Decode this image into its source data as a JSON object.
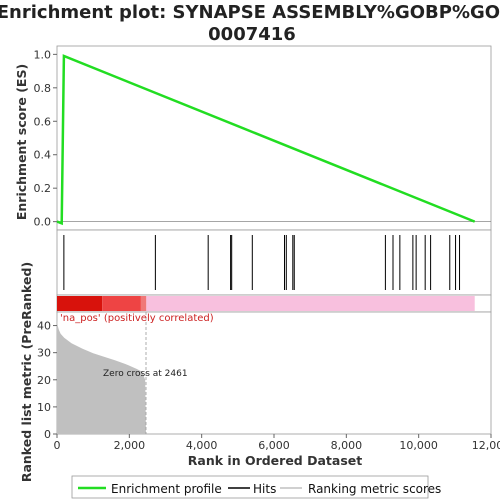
{
  "title_line1": "Enrichment plot: SYNAPSE ASSEMBLY%GOBP%GO:",
  "title_line2": "0007416",
  "colors": {
    "enrichment": "#22dd22",
    "hits": "#000000",
    "ranking_fill": "#c0c0c0",
    "heat_red_dark": "#d8120c",
    "heat_red": "#ee4444",
    "heat_pink": "#f8c0de",
    "annotation_red": "#cc2222"
  },
  "chart_data": [
    {
      "type": "line",
      "name": "enrichment-profile",
      "ylabel": "Enrichment score (ES)",
      "xlim": [
        0,
        12000
      ],
      "ylim": [
        -0.05,
        1.05
      ],
      "yticks": [
        0.0,
        0.2,
        0.4,
        0.6,
        0.8,
        1.0
      ],
      "ytick_labels": [
        "0.0",
        "0.2",
        "0.4",
        "0.6",
        "0.8",
        "1.0"
      ],
      "grid": false,
      "x": [
        0,
        130,
        190,
        11550
      ],
      "y": [
        0.0,
        -0.01,
        0.99,
        0.0
      ]
    },
    {
      "type": "hits",
      "name": "hits",
      "positions": [
        190,
        2720,
        4180,
        4800,
        4830,
        5400,
        6290,
        6340,
        6520,
        6560,
        9080,
        9290,
        9480,
        9840,
        9930,
        10180,
        10330,
        10860,
        11020,
        11130
      ]
    },
    {
      "type": "heatmap",
      "name": "ranking-heatmap",
      "segments": [
        {
          "from": 0,
          "to": 1250,
          "color": "#d8120c"
        },
        {
          "from": 1250,
          "to": 2320,
          "color": "#ee4444"
        },
        {
          "from": 2320,
          "to": 2470,
          "color": "#f07878"
        },
        {
          "from": 2470,
          "to": 11550,
          "color": "#f8c0de"
        }
      ]
    },
    {
      "type": "area",
      "name": "ranked-list-metric",
      "xlabel": "Rank in Ordered Dataset",
      "ylabel": "Ranked list metric (PreRanked)",
      "xlim": [
        0,
        12000
      ],
      "ylim": [
        0,
        45
      ],
      "xticks": [
        0,
        2000,
        4000,
        6000,
        8000,
        10000,
        12000
      ],
      "xtick_labels": [
        "0",
        "2,000",
        "4,000",
        "6,000",
        "8,000",
        "10,000",
        "12,000"
      ],
      "yticks": [
        0,
        10,
        20,
        30,
        40
      ],
      "ytick_labels": [
        "0",
        "10",
        "20",
        "30",
        "40"
      ],
      "x": [
        0,
        5,
        20,
        50,
        100,
        200,
        400,
        700,
        1000,
        1300,
        1600,
        1900,
        2200,
        2350,
        2440,
        2461
      ],
      "y": [
        45,
        42,
        40,
        38.5,
        37,
        35.5,
        33.5,
        31.5,
        29.8,
        28.5,
        27.2,
        25.8,
        24,
        23,
        20,
        0
      ],
      "zero_cross_rank": 2461,
      "annotation_na_pos": "'na_pos' (positively correlated)",
      "annotation_zero_cross": "Zero cross at 2461"
    }
  ],
  "legend": {
    "items": [
      {
        "label": "Enrichment profile"
      },
      {
        "label": "Hits"
      },
      {
        "label": "Ranking metric scores"
      }
    ]
  }
}
